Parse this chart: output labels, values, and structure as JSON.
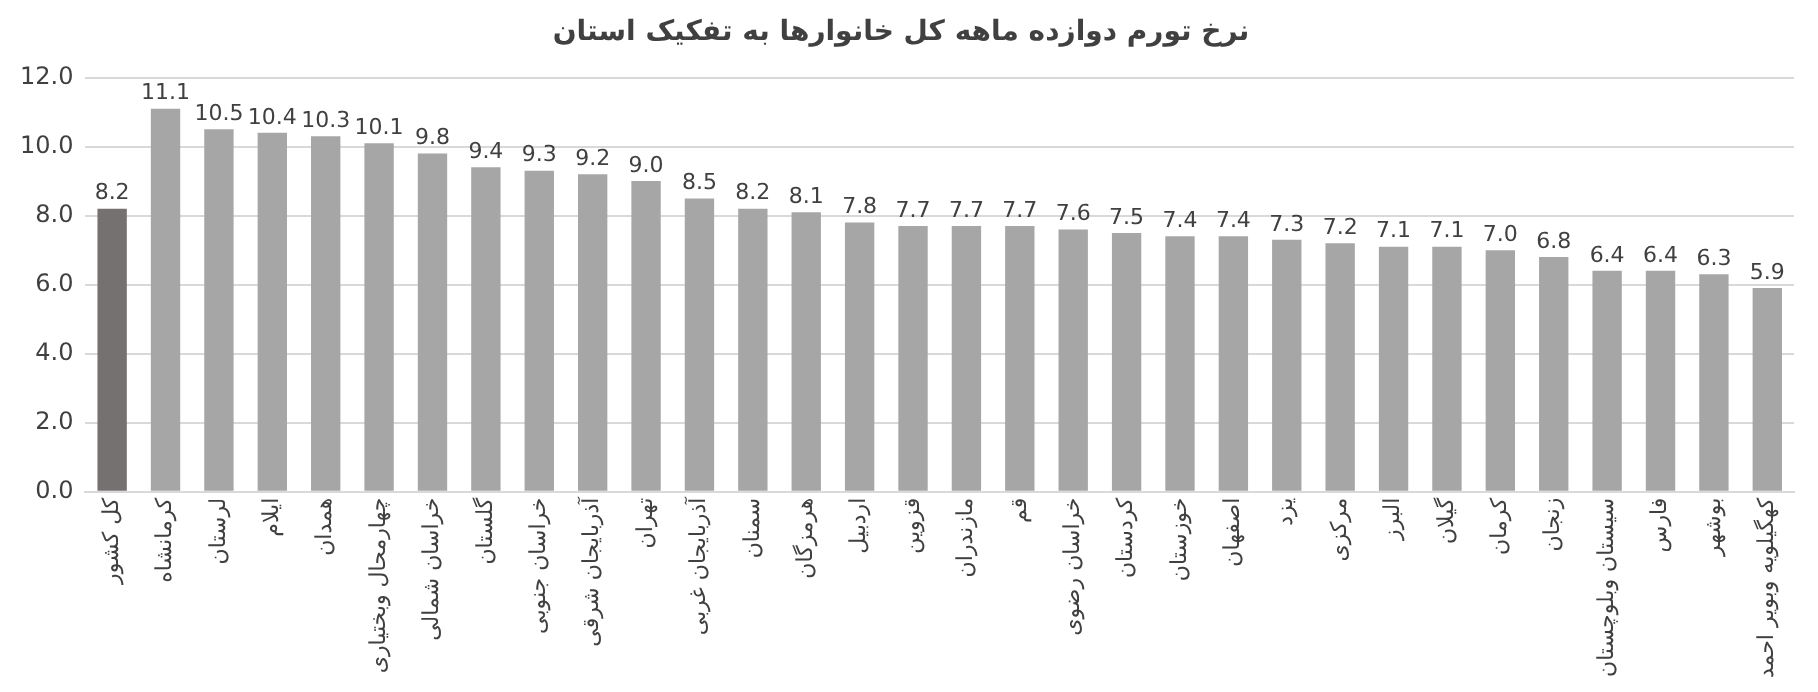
{
  "chart_data": {
    "type": "bar",
    "title": "نرخ تورم دوازده ماهه کل خانوارها به تفکیک استان",
    "categories": [
      "کل کشور",
      "کرمانشاه",
      "لرستان",
      "ایلام",
      "همدان",
      "چهارمحال وبختیاری",
      "خراسان شمالی",
      "گلستان",
      "خراسان جنوبی",
      "آذربایجان شرقی",
      "تهران",
      "آذربایجان غربی",
      "سمنان",
      "هرمزگان",
      "اردبیل",
      "قزوین",
      "مازندران",
      "قم",
      "خراسان رضوی",
      "کردستان",
      "خوزستان",
      "اصفهان",
      "یزد",
      "مرکزی",
      "البرز",
      "گیلان",
      "کرمان",
      "زنجان",
      "سیستان وبلوچستان",
      "فارس",
      "بوشهر",
      "کهگیلویه وبویر احمد"
    ],
    "values": [
      8.2,
      11.1,
      10.5,
      10.4,
      10.3,
      10.1,
      9.8,
      9.4,
      9.3,
      9.2,
      9.0,
      8.5,
      8.2,
      8.1,
      7.8,
      7.7,
      7.7,
      7.7,
      7.6,
      7.5,
      7.4,
      7.4,
      7.3,
      7.2,
      7.1,
      7.1,
      7.0,
      6.8,
      6.4,
      6.4,
      6.3,
      5.9
    ],
    "colors": [
      "#767171",
      "#a6a6a6",
      "#a6a6a6",
      "#a6a6a6",
      "#a6a6a6",
      "#a6a6a6",
      "#a6a6a6",
      "#a6a6a6",
      "#a6a6a6",
      "#a6a6a6",
      "#a6a6a6",
      "#a6a6a6",
      "#a6a6a6",
      "#a6a6a6",
      "#a6a6a6",
      "#a6a6a6",
      "#a6a6a6",
      "#a6a6a6",
      "#a6a6a6",
      "#a6a6a6",
      "#a6a6a6",
      "#a6a6a6",
      "#a6a6a6",
      "#a6a6a6",
      "#a6a6a6",
      "#a6a6a6",
      "#a6a6a6",
      "#a6a6a6",
      "#a6a6a6",
      "#a6a6a6",
      "#a6a6a6",
      "#a6a6a6"
    ],
    "ylim": [
      0,
      12
    ],
    "yticks": [
      {
        "value": 0,
        "label": "0.0"
      },
      {
        "value": 2,
        "label": "2.0"
      },
      {
        "value": 4,
        "label": "4.0"
      },
      {
        "value": 6,
        "label": "6.0"
      },
      {
        "value": 8,
        "label": "8.0"
      },
      {
        "value": 10,
        "label": "10.0"
      },
      {
        "value": 12,
        "label": "12.0"
      }
    ],
    "value_labels": [
      "8.2",
      "11.1",
      "10.5",
      "10.4",
      "10.3",
      "10.1",
      "9.8",
      "9.4",
      "9.3",
      "9.2",
      "9.0",
      "8.5",
      "8.2",
      "8.1",
      "7.8",
      "7.7",
      "7.7",
      "7.7",
      "7.6",
      "7.5",
      "7.4",
      "7.4",
      "7.3",
      "7.2",
      "7.1",
      "7.1",
      "7.0",
      "6.8",
      "6.4",
      "6.4",
      "6.3",
      "5.9"
    ],
    "grid": "y",
    "legend": false
  }
}
